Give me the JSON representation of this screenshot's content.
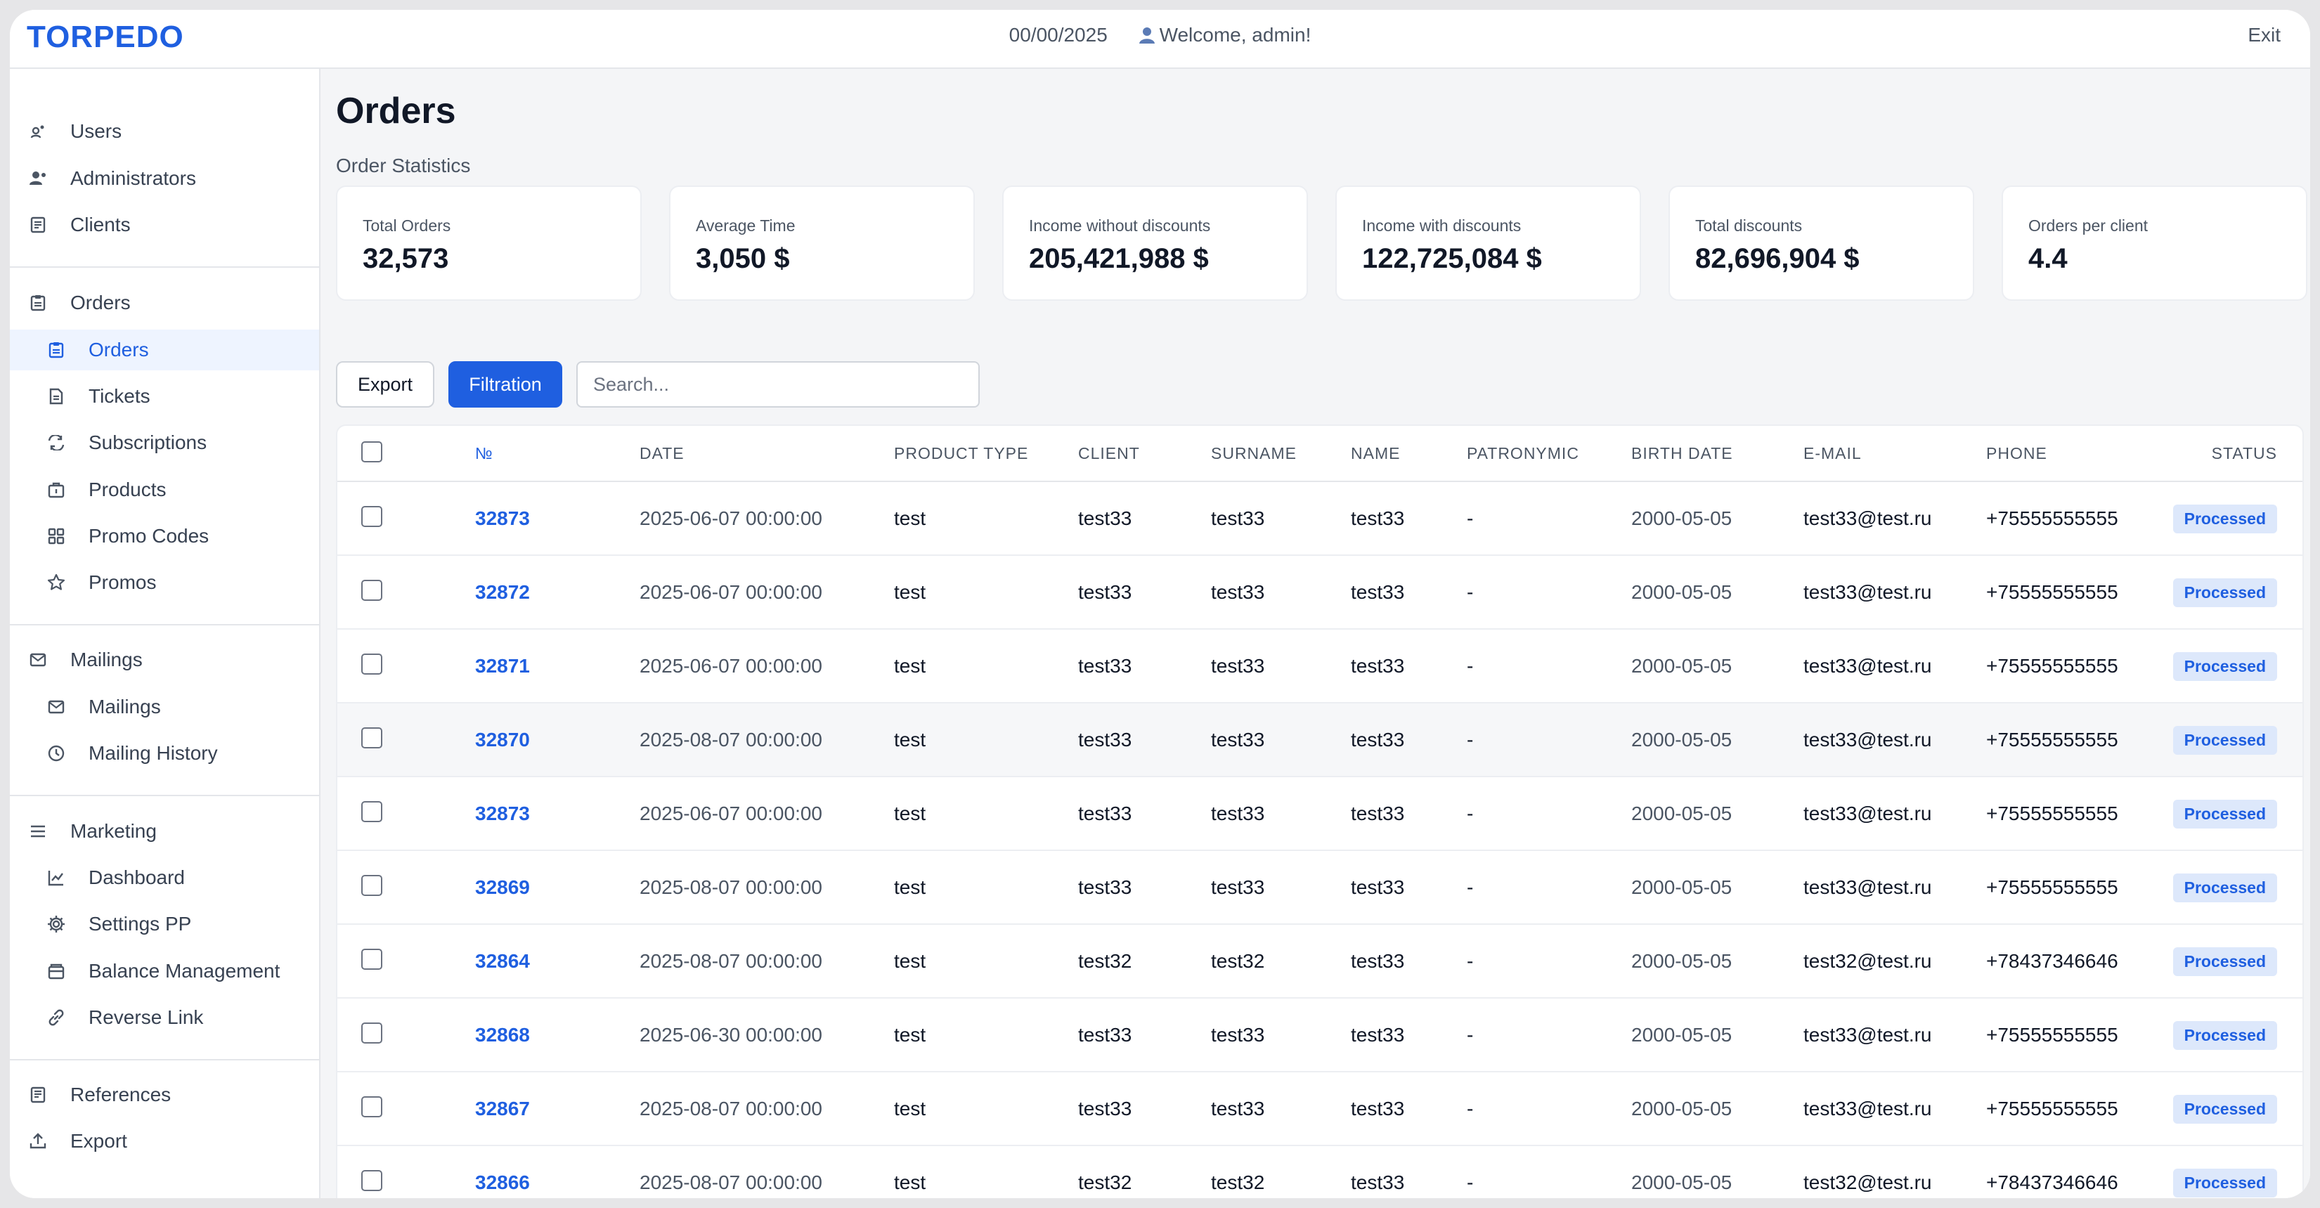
{
  "header": {
    "logo": "TORPEDO",
    "date": "00/00/2025",
    "welcome": "Welcome, admin!",
    "exit": "Exit"
  },
  "sidebar": {
    "group1": [
      "Users",
      "Administrators",
      "Clients"
    ],
    "orders_group": "Orders",
    "orders_items": [
      "Orders",
      "Tickets",
      "Subscriptions",
      "Products",
      "Promo Codes",
      "Promos"
    ],
    "mailings_group": "Mailings",
    "mailings_items": [
      "Mailings",
      "Mailing History"
    ],
    "marketing_group": "Marketing",
    "marketing_items": [
      "Dashboard",
      "Settings PP",
      "Balance Management",
      "Reverse Link"
    ],
    "bottom_items": [
      "References",
      "Export"
    ]
  },
  "main": {
    "title": "Orders",
    "section": "Order Statistics",
    "stats": [
      {
        "label": "Total Orders",
        "value": "32,573"
      },
      {
        "label": "Average Time",
        "value": "3,050 $"
      },
      {
        "label": "Income without discounts",
        "value": "205,421,988 $"
      },
      {
        "label": "Income with discounts",
        "value": "122,725,084 $"
      },
      {
        "label": "Total discounts",
        "value": "82,696,904 $"
      },
      {
        "label": "Orders per client",
        "value": "4.4"
      }
    ],
    "export_label": "Export",
    "filter_label": "Filtration",
    "search_placeholder": "Search..."
  },
  "table": {
    "columns": [
      "№",
      "DATE",
      "PRODUCT TYPE",
      "CLIENT",
      "SURNAME",
      "NAME",
      "PATRONYMIC",
      "BIRTH DATE",
      "E-MAIL",
      "PHONE",
      "STATUS"
    ],
    "rows": [
      {
        "no": "32873",
        "date": "2025-06-07 00:00:00",
        "type": "test",
        "client": "test33",
        "surname": "test33",
        "name": "test33",
        "patronymic": "-",
        "birth": "2000-05-05",
        "email": "test33@test.ru",
        "phone": "+75555555555",
        "status": "Processed"
      },
      {
        "no": "32872",
        "date": "2025-06-07 00:00:00",
        "type": "test",
        "client": "test33",
        "surname": "test33",
        "name": "test33",
        "patronymic": "-",
        "birth": "2000-05-05",
        "email": "test33@test.ru",
        "phone": "+75555555555",
        "status": "Processed"
      },
      {
        "no": "32871",
        "date": "2025-06-07 00:00:00",
        "type": "test",
        "client": "test33",
        "surname": "test33",
        "name": "test33",
        "patronymic": "-",
        "birth": "2000-05-05",
        "email": "test33@test.ru",
        "phone": "+75555555555",
        "status": "Processed"
      },
      {
        "no": "32870",
        "date": "2025-08-07 00:00:00",
        "type": "test",
        "client": "test33",
        "surname": "test33",
        "name": "test33",
        "patronymic": "-",
        "birth": "2000-05-05",
        "email": "test33@test.ru",
        "phone": "+75555555555",
        "status": "Processed"
      },
      {
        "no": "32873",
        "date": "2025-06-07 00:00:00",
        "type": "test",
        "client": "test33",
        "surname": "test33",
        "name": "test33",
        "patronymic": "-",
        "birth": "2000-05-05",
        "email": "test33@test.ru",
        "phone": "+75555555555",
        "status": "Processed"
      },
      {
        "no": "32869",
        "date": "2025-08-07 00:00:00",
        "type": "test",
        "client": "test33",
        "surname": "test33",
        "name": "test33",
        "patronymic": "-",
        "birth": "2000-05-05",
        "email": "test33@test.ru",
        "phone": "+75555555555",
        "status": "Processed"
      },
      {
        "no": "32864",
        "date": "2025-08-07 00:00:00",
        "type": "test",
        "client": "test32",
        "surname": "test32",
        "name": "test33",
        "patronymic": "-",
        "birth": "2000-05-05",
        "email": "test32@test.ru",
        "phone": "+78437346646",
        "status": "Processed"
      },
      {
        "no": "32868",
        "date": "2025-06-30 00:00:00",
        "type": "test",
        "client": "test33",
        "surname": "test33",
        "name": "test33",
        "patronymic": "-",
        "birth": "2000-05-05",
        "email": "test33@test.ru",
        "phone": "+75555555555",
        "status": "Processed"
      },
      {
        "no": "32867",
        "date": "2025-08-07 00:00:00",
        "type": "test",
        "client": "test33",
        "surname": "test33",
        "name": "test33",
        "patronymic": "-",
        "birth": "2000-05-05",
        "email": "test33@test.ru",
        "phone": "+75555555555",
        "status": "Processed"
      },
      {
        "no": "32866",
        "date": "2025-08-07 00:00:00",
        "type": "test",
        "client": "test32",
        "surname": "test32",
        "name": "test33",
        "patronymic": "-",
        "birth": "2000-05-05",
        "email": "test32@test.ru",
        "phone": "+78437346646",
        "status": "Processed"
      }
    ]
  }
}
